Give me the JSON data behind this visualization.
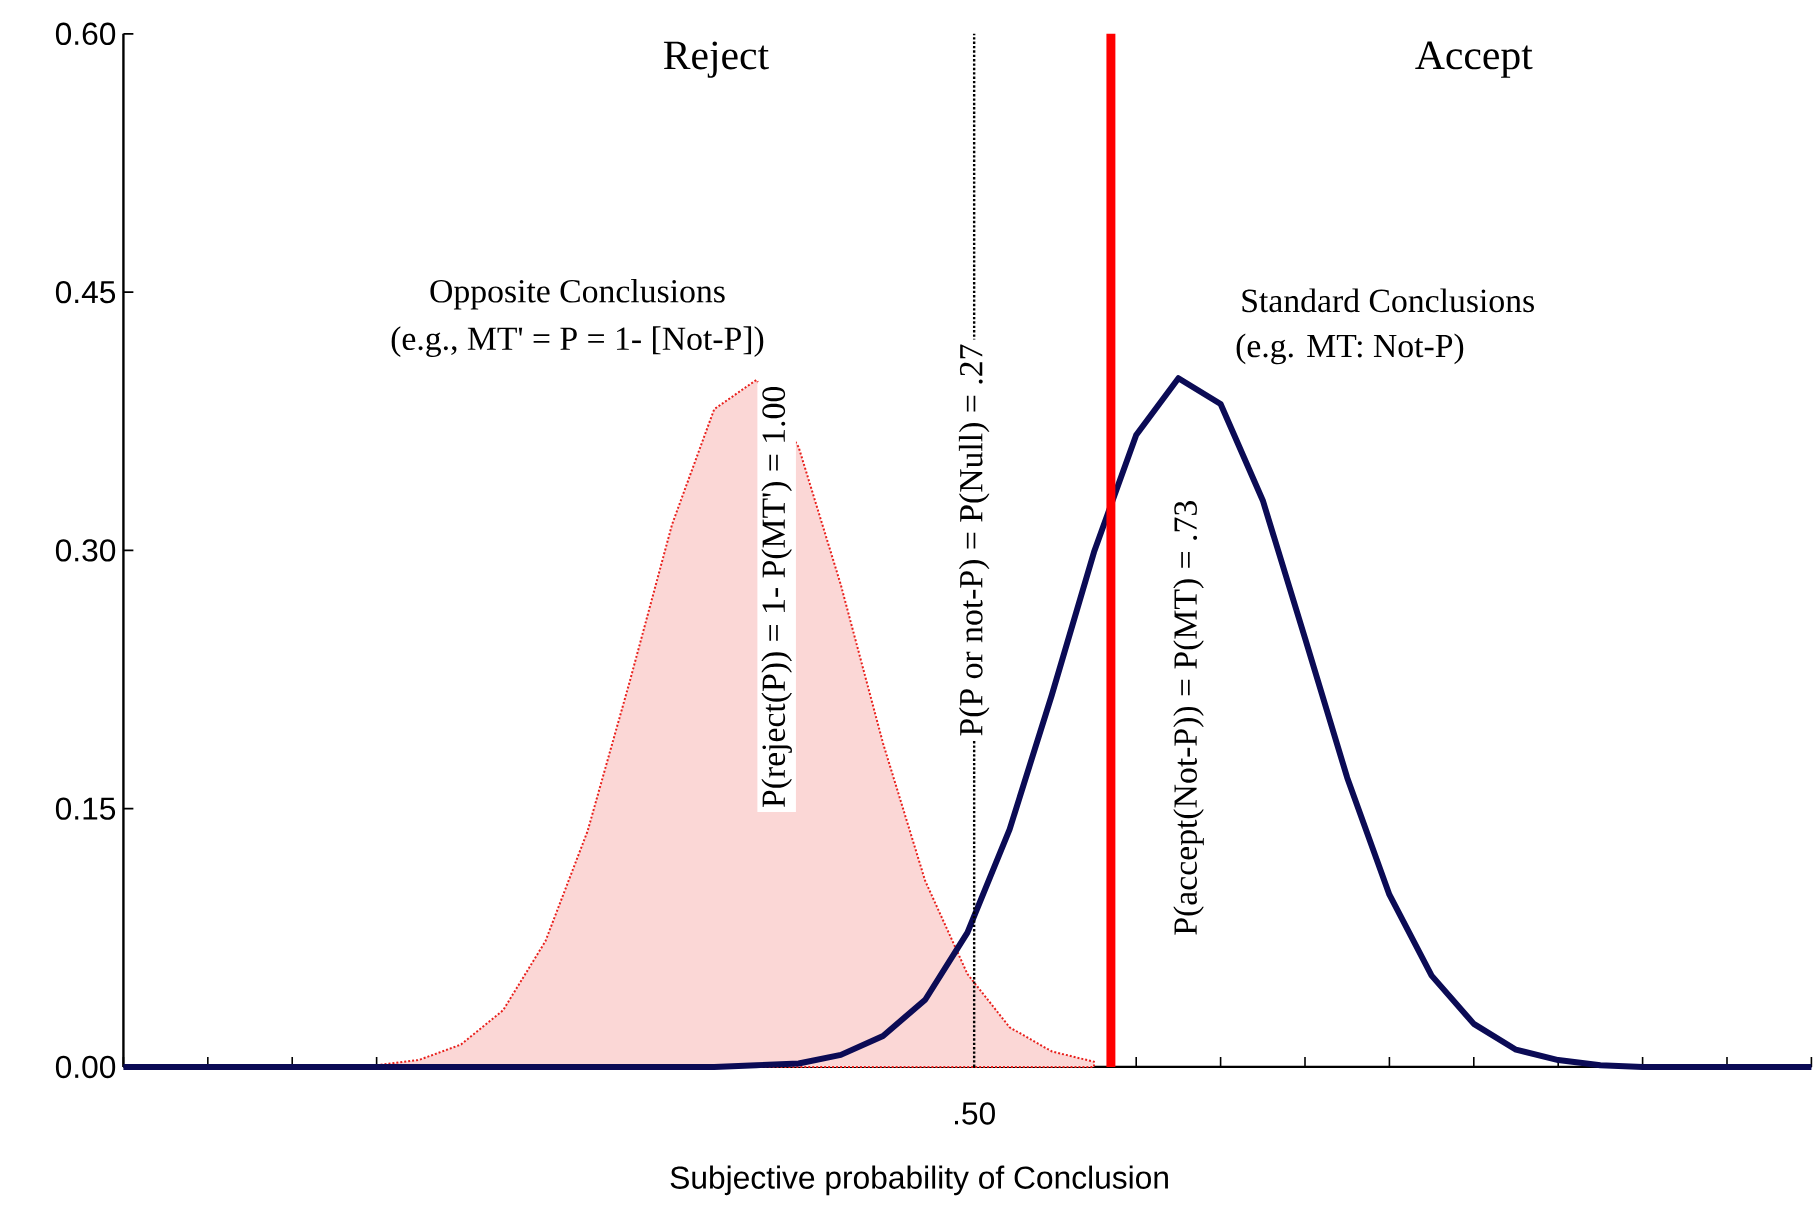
{
  "chart_data": {
    "type": "line",
    "xlabel": "Subjective probability of Conclusion",
    "categories": [
      null,
      null,
      null,
      null,
      null,
      null,
      null,
      null,
      null,
      null,
      null,
      null,
      null,
      null,
      null,
      null,
      null,
      null,
      null,
      null,
      null,
      null,
      null,
      null,
      null,
      null,
      null,
      null,
      null,
      null,
      null,
      null,
      null,
      null,
      null,
      null,
      null,
      null,
      null,
      null,
      null
    ],
    "ylim": [
      0,
      0.6
    ],
    "yticks": [
      {
        "value": 0,
        "label": "0.00"
      },
      {
        "value": 0.15,
        "label": "0.15"
      },
      {
        "value": 0.3,
        "label": "0.30"
      },
      {
        "value": 0.45,
        "label": "0.45"
      },
      {
        "value": 0.6,
        "label": "0.60"
      }
    ],
    "series": [
      {
        "type": "area",
        "color": "#e8201c",
        "line_style": "dotted",
        "values": [
          null,
          null,
          null,
          null,
          null,
          null,
          0.001,
          0.004,
          0.013,
          0.033,
          0.073,
          0.137,
          0.224,
          0.315,
          0.382,
          0.399,
          0.36,
          0.28,
          0.188,
          0.108,
          0.054,
          0.023,
          0.009,
          0.003,
          null,
          null,
          null,
          null,
          null,
          null,
          null,
          null,
          null,
          null,
          null,
          null,
          null,
          null,
          null,
          null,
          null
        ]
      },
      {
        "color": "#0b0b55",
        "line_style": "solid",
        "values": [
          0,
          0,
          0,
          0,
          0,
          0,
          0,
          0,
          0,
          0,
          0,
          0,
          0,
          0,
          0,
          0.001,
          0.002,
          0.007,
          0.018,
          0.039,
          0.078,
          0.138,
          0.216,
          0.299,
          0.367,
          0.4,
          0.385,
          0.329,
          0.249,
          0.168,
          0.1,
          0.053,
          0.025,
          0.01,
          0.004,
          0.001,
          0,
          0,
          0,
          0,
          0
        ]
      }
    ],
    "annotations": [
      "P(P or not-P) = P(Null) = .27",
      ".50",
      "Reject",
      "Accept",
      "Opposite Conclusions",
      "(e.g., MT' = P = 1- [Not-P])",
      "Standard Conclusions",
      "(e.g. MT: Not-P)",
      "P(reject(P)) = 1- P(MT') = 1.00",
      "P(accept(Not-P)) = P(MT) = .73"
    ]
  }
}
